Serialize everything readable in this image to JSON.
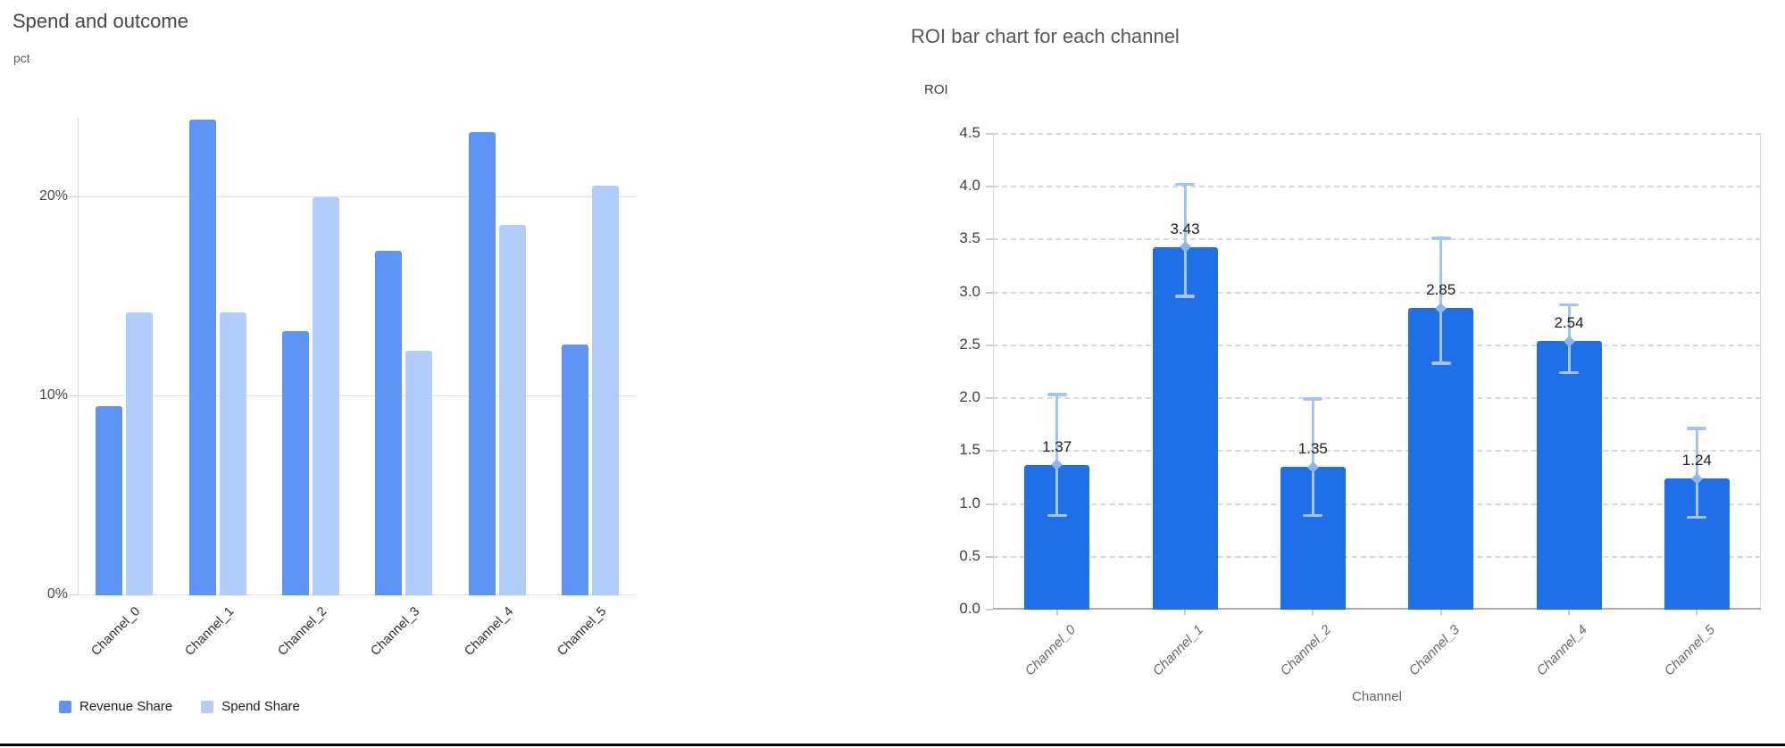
{
  "page": {
    "background": "#ffffff",
    "bottom_rule_color": "#000000"
  },
  "chart_data": [
    {
      "type": "bar",
      "variant": "grouped_vertical",
      "title": "Spend and outcome",
      "ylabel": "pct",
      "xlabel": "",
      "categories": [
        "Channel_0",
        "Channel_1",
        "Channel_2",
        "Channel_3",
        "Channel_4",
        "Channel_5"
      ],
      "series": [
        {
          "name": "Revenue Share",
          "color": "#5e94f4",
          "values": [
            9.5,
            23.9,
            13.3,
            17.3,
            23.3,
            12.6
          ]
        },
        {
          "name": "Spend Share",
          "color": "#b3cdfa",
          "values": [
            14.2,
            14.2,
            20.0,
            12.3,
            18.6,
            20.6
          ]
        }
      ],
      "ylim": [
        0,
        24
      ],
      "yticks": [
        {
          "value": 0,
          "label": "0%"
        },
        {
          "value": 10,
          "label": "10%"
        },
        {
          "value": 20,
          "label": "20%"
        }
      ],
      "grid": "horizontal-solid",
      "legend_position": "bottom-left"
    },
    {
      "type": "bar",
      "variant": "single_series_with_error_bars",
      "title": "ROI bar chart for each channel",
      "ylabel": "ROI",
      "xlabel": "Channel",
      "categories": [
        "Channel_0",
        "Channel_1",
        "Channel_2",
        "Channel_3",
        "Channel_4",
        "Channel_5"
      ],
      "values": [
        1.37,
        3.43,
        1.35,
        2.85,
        2.54,
        1.24
      ],
      "value_labels": [
        "1.37",
        "3.43",
        "1.35",
        "2.85",
        "2.54",
        "1.24"
      ],
      "error_low": [
        0.89,
        2.96,
        0.89,
        2.33,
        2.24,
        0.87
      ],
      "error_high": [
        2.04,
        4.03,
        2.0,
        3.52,
        2.89,
        1.72
      ],
      "bar_color": "#1e6fe8",
      "error_bar_color": "#a5c4f5",
      "error_marker_color": "#8fb4f2",
      "ylim": [
        0,
        4.5
      ],
      "ytick_labels": [
        "0.0",
        "0.5",
        "1.0",
        "1.5",
        "2.0",
        "2.5",
        "3.0",
        "3.5",
        "4.0",
        "4.5"
      ],
      "grid": "horizontal-dashed",
      "legend_position": "none"
    }
  ]
}
